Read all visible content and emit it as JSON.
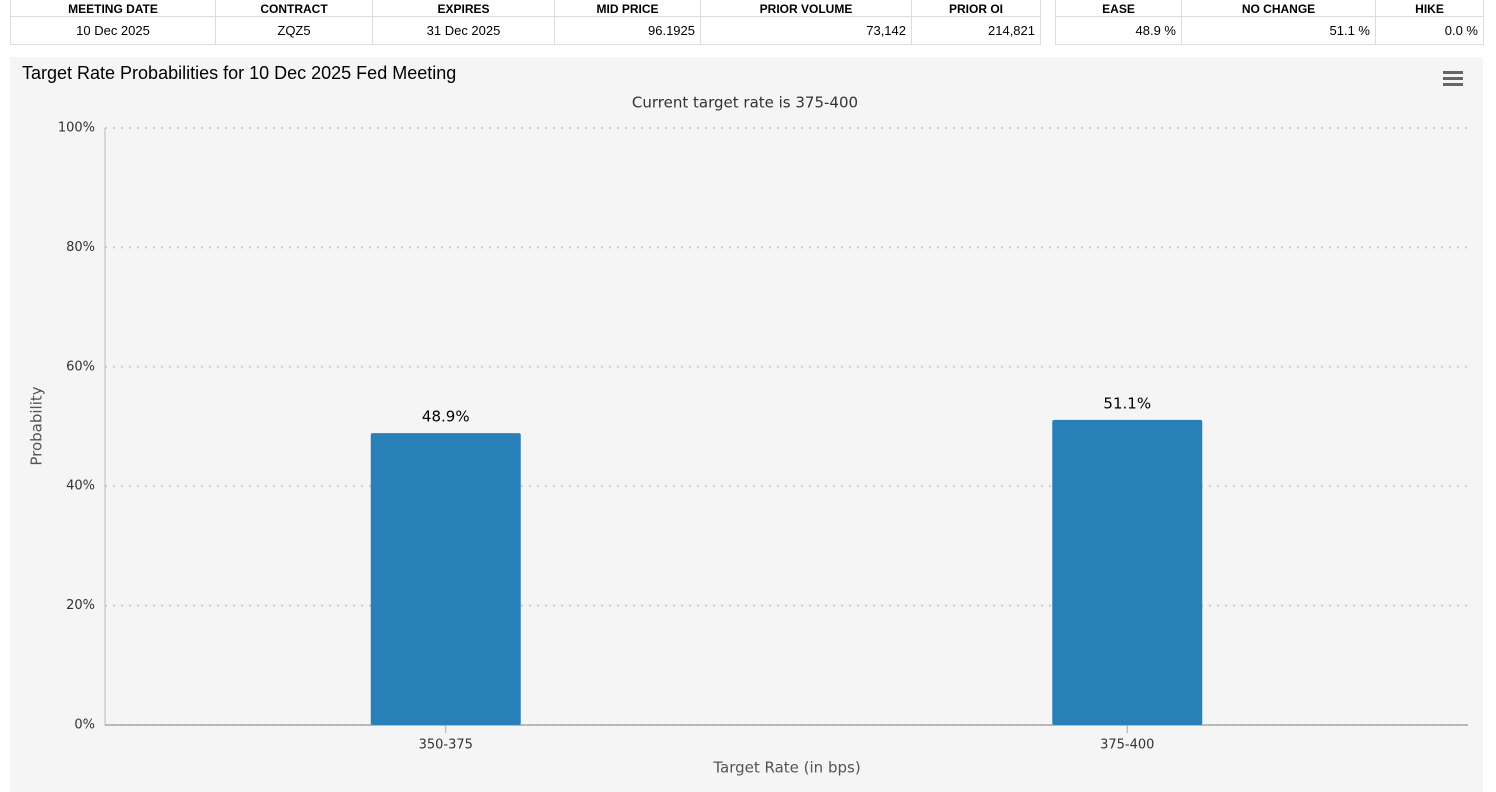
{
  "tables": [
    {
      "headers": [
        "MEETING DATE",
        "CONTRACT",
        "EXPIRES",
        "MID PRICE",
        "PRIOR VOLUME",
        "PRIOR OI"
      ],
      "rows": [
        [
          "10 Dec 2025",
          "ZQZ5",
          "31 Dec 2025",
          "96.1925",
          "73,142",
          "214,821"
        ]
      ]
    },
    {
      "headers": [
        "EASE",
        "NO CHANGE",
        "HIKE"
      ],
      "rows": [
        [
          "48.9 %",
          "51.1 %",
          "0.0 %"
        ]
      ]
    }
  ],
  "chart_data": {
    "type": "bar",
    "title": "Target Rate Probabilities for 10 Dec 2025 Fed Meeting",
    "subtitle": "Current target rate is 375-400",
    "x_label": "Target Rate (in bps)",
    "y_label": "Probability",
    "categories": [
      "350-375",
      "375-400"
    ],
    "values": [
      48.9,
      51.1
    ],
    "value_labels": [
      "48.9%",
      "51.1%"
    ],
    "color": "#2980b9",
    "ylim": [
      0,
      100
    ],
    "yticks": [
      {
        "value": 0,
        "label": "0%"
      },
      {
        "value": 20,
        "label": "20%"
      },
      {
        "value": 40,
        "label": "40%"
      },
      {
        "value": 60,
        "label": "60%"
      },
      {
        "value": 80,
        "label": "80%"
      },
      {
        "value": 100,
        "label": "100%"
      }
    ],
    "grid": true
  }
}
